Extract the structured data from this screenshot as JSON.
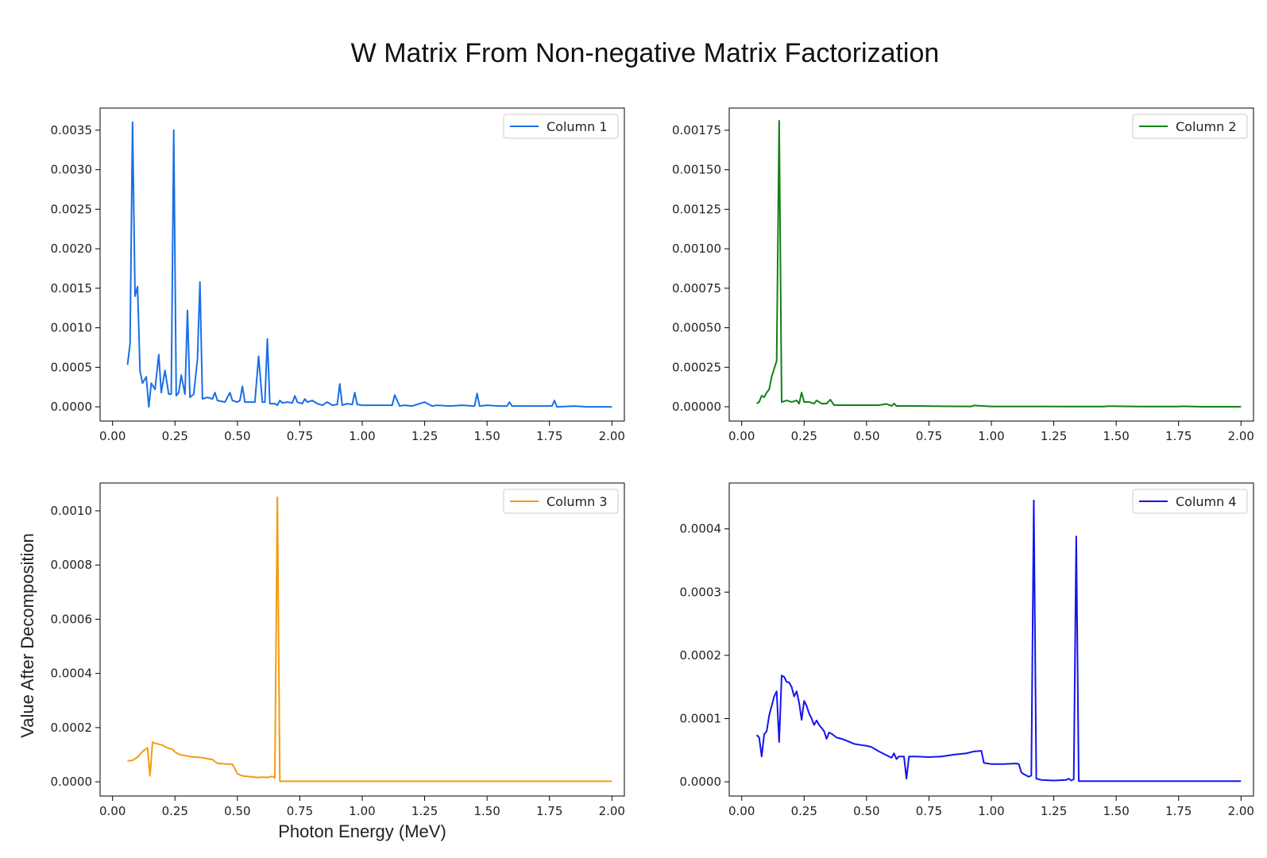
{
  "figure": {
    "title": "W Matrix From Non-negative Matrix Factorization",
    "ylabel": "Value After Decomposition",
    "xlabel": "Photon Energy (MeV)"
  },
  "chart_data": [
    {
      "type": "line",
      "series": [
        {
          "name": "Column 1",
          "color": "#1a6fe6",
          "x": [
            0.06,
            0.07,
            0.08,
            0.09,
            0.1,
            0.11,
            0.12,
            0.135,
            0.145,
            0.155,
            0.17,
            0.185,
            0.195,
            0.21,
            0.225,
            0.235,
            0.245,
            0.255,
            0.265,
            0.275,
            0.29,
            0.3,
            0.31,
            0.325,
            0.34,
            0.35,
            0.36,
            0.38,
            0.4,
            0.41,
            0.42,
            0.45,
            0.47,
            0.48,
            0.5,
            0.51,
            0.52,
            0.53,
            0.55,
            0.57,
            0.585,
            0.6,
            0.61,
            0.62,
            0.63,
            0.65,
            0.66,
            0.67,
            0.68,
            0.7,
            0.72,
            0.73,
            0.74,
            0.76,
            0.77,
            0.78,
            0.8,
            0.82,
            0.84,
            0.86,
            0.88,
            0.9,
            0.91,
            0.92,
            0.94,
            0.96,
            0.97,
            0.98,
            1.0,
            1.05,
            1.1,
            1.12,
            1.13,
            1.15,
            1.17,
            1.2,
            1.25,
            1.28,
            1.3,
            1.35,
            1.4,
            1.45,
            1.46,
            1.47,
            1.5,
            1.55,
            1.58,
            1.59,
            1.6,
            1.65,
            1.7,
            1.76,
            1.77,
            1.78,
            1.85,
            1.9,
            2.0
          ],
          "y": [
            0.00053,
            0.0008,
            0.0036,
            0.0014,
            0.00152,
            0.00045,
            0.0003,
            0.00038,
            0.0,
            0.0003,
            0.00022,
            0.00066,
            0.00018,
            0.00046,
            0.00016,
            0.00016,
            0.0035,
            0.00014,
            0.00018,
            0.0004,
            0.00016,
            0.00122,
            0.00012,
            0.00016,
            0.0006,
            0.00158,
            0.0001,
            0.00012,
            0.0001,
            0.00018,
            8e-05,
            6e-05,
            0.00018,
            8e-05,
            6e-05,
            8e-05,
            0.00026,
            6e-05,
            6e-05,
            6e-05,
            0.00064,
            6e-05,
            6e-05,
            0.00086,
            4e-05,
            4e-05,
            2e-05,
            8e-05,
            5e-05,
            6e-05,
            5e-05,
            0.00014,
            6e-05,
            4e-05,
            0.0001,
            6e-05,
            8e-05,
            4e-05,
            2e-05,
            6e-05,
            2e-05,
            3e-05,
            0.00029,
            2e-05,
            4e-05,
            3e-05,
            0.00018,
            3e-05,
            2e-05,
            2e-05,
            2e-05,
            2e-05,
            0.00015,
            1e-05,
            2e-05,
            1e-05,
            6e-05,
            1e-05,
            2e-05,
            1e-05,
            2e-05,
            1e-05,
            0.00017,
            1e-05,
            2e-05,
            1e-05,
            1e-05,
            6e-05,
            1e-05,
            1e-05,
            1e-05,
            1e-05,
            8e-05,
            0.0,
            1e-05,
            0.0,
            0.0
          ]
        }
      ],
      "legend": "upper right",
      "xlim": [
        -0.05,
        2.05
      ],
      "ylim": [
        -0.00018,
        0.00378
      ],
      "xticks": [
        "0.00",
        "0.25",
        "0.50",
        "0.75",
        "1.00",
        "1.25",
        "1.50",
        "1.75",
        "2.00"
      ],
      "yticks": [
        "0.0000",
        "0.0005",
        "0.0010",
        "0.0015",
        "0.0020",
        "0.0025",
        "0.0030",
        "0.0035"
      ]
    },
    {
      "type": "line",
      "series": [
        {
          "name": "Column 2",
          "color": "#138015",
          "x": [
            0.06,
            0.07,
            0.08,
            0.09,
            0.1,
            0.11,
            0.12,
            0.14,
            0.15,
            0.16,
            0.18,
            0.2,
            0.22,
            0.23,
            0.24,
            0.25,
            0.27,
            0.29,
            0.3,
            0.32,
            0.34,
            0.355,
            0.37,
            0.4,
            0.45,
            0.5,
            0.55,
            0.58,
            0.6,
            0.61,
            0.62,
            0.65,
            0.7,
            0.8,
            0.92,
            0.93,
            1.0,
            1.1,
            1.2,
            1.3,
            1.45,
            1.47,
            1.6,
            1.75,
            1.76,
            1.85,
            2.0
          ],
          "y": [
            2e-05,
            3e-05,
            7e-05,
            6e-05,
            9e-05,
            0.00011,
            0.00019,
            0.00029,
            0.00181,
            3e-05,
            4e-05,
            3e-05,
            4e-05,
            2e-05,
            9e-05,
            3e-05,
            3e-05,
            2e-05,
            4e-05,
            2e-05,
            2e-05,
            4.5e-05,
            1e-05,
            1e-05,
            1e-05,
            1e-05,
            1e-05,
            1.8e-05,
            5e-06,
            2e-05,
            5e-06,
            5e-06,
            5e-06,
            3e-06,
            2e-06,
            8e-06,
            2e-06,
            2e-06,
            2e-06,
            1e-06,
            1e-06,
            4e-06,
            1e-06,
            1e-06,
            3e-06,
            0.0,
            0.0
          ]
        }
      ],
      "legend": "upper right",
      "xlim": [
        -0.05,
        2.05
      ],
      "ylim": [
        -9.05e-05,
        0.0018905
      ],
      "xticks": [
        "0.00",
        "0.25",
        "0.50",
        "0.75",
        "1.00",
        "1.25",
        "1.50",
        "1.75",
        "2.00"
      ],
      "yticks": [
        "0.00000",
        "0.00025",
        "0.00050",
        "0.00075",
        "0.00100",
        "0.00125",
        "0.00150",
        "0.00175"
      ]
    },
    {
      "type": "line",
      "series": [
        {
          "name": "Column 3",
          "color": "#f59a11",
          "x": [
            0.06,
            0.08,
            0.1,
            0.12,
            0.14,
            0.15,
            0.16,
            0.18,
            0.2,
            0.22,
            0.24,
            0.25,
            0.27,
            0.3,
            0.32,
            0.35,
            0.37,
            0.4,
            0.42,
            0.45,
            0.48,
            0.5,
            0.52,
            0.55,
            0.58,
            0.6,
            0.62,
            0.64,
            0.65,
            0.66,
            0.67,
            0.68,
            0.75,
            1.0,
            1.25,
            1.5,
            1.75,
            2.0
          ],
          "y": [
            7.7e-05,
            7.9e-05,
            9.1e-05,
            0.000112,
            0.000125,
            2.2e-05,
            0.000146,
            0.00014,
            0.000135,
            0.000125,
            0.00012,
            0.00011,
            0.0001,
            9.5e-05,
            9.2e-05,
            9e-05,
            8.7e-05,
            8.2e-05,
            6.8e-05,
            6.6e-05,
            6.5e-05,
            3e-05,
            2.2e-05,
            1.9e-05,
            1.6e-05,
            1.7e-05,
            1.6e-05,
            2e-05,
            1.4e-05,
            0.00105,
            2e-06,
            2e-06,
            2e-06,
            2e-06,
            2e-06,
            2e-06,
            2e-06,
            2e-06
          ]
        }
      ],
      "legend": "upper right",
      "xlim": [
        -0.05,
        2.05
      ],
      "ylim": [
        -5.25e-05,
        0.0011025
      ],
      "xticks": [
        "0.00",
        "0.25",
        "0.50",
        "0.75",
        "1.00",
        "1.25",
        "1.50",
        "1.75",
        "2.00"
      ],
      "yticks": [
        "0.0000",
        "0.0002",
        "0.0004",
        "0.0006",
        "0.0008",
        "0.0010"
      ]
    },
    {
      "type": "line",
      "series": [
        {
          "name": "Column 4",
          "color": "#1414ee",
          "x": [
            0.06,
            0.07,
            0.08,
            0.09,
            0.1,
            0.11,
            0.12,
            0.13,
            0.14,
            0.15,
            0.16,
            0.17,
            0.18,
            0.19,
            0.2,
            0.21,
            0.22,
            0.23,
            0.24,
            0.25,
            0.26,
            0.27,
            0.28,
            0.29,
            0.3,
            0.31,
            0.32,
            0.33,
            0.34,
            0.35,
            0.36,
            0.38,
            0.4,
            0.42,
            0.45,
            0.48,
            0.5,
            0.52,
            0.55,
            0.58,
            0.6,
            0.61,
            0.62,
            0.63,
            0.65,
            0.66,
            0.67,
            0.7,
            0.75,
            0.8,
            0.85,
            0.9,
            0.93,
            0.96,
            0.97,
            1.0,
            1.05,
            1.1,
            1.11,
            1.12,
            1.13,
            1.14,
            1.15,
            1.16,
            1.17,
            1.18,
            1.2,
            1.25,
            1.3,
            1.31,
            1.32,
            1.33,
            1.34,
            1.35,
            1.4,
            1.5,
            1.75,
            2.0
          ],
          "y": [
            7.4e-05,
            7e-05,
            4e-05,
            7.5e-05,
            8e-05,
            0.000105,
            0.00012,
            0.000135,
            0.000143,
            6.3e-05,
            0.000168,
            0.000166,
            0.000158,
            0.000157,
            0.00015,
            0.000135,
            0.000143,
            0.000125,
            9.8e-05,
            0.000128,
            0.00012,
            0.000108,
            0.0001,
            9e-05,
            9.7e-05,
            9e-05,
            8.5e-05,
            8e-05,
            6.8e-05,
            7.8e-05,
            7.6e-05,
            7e-05,
            6.8e-05,
            6.5e-05,
            6e-05,
            5.8e-05,
            5.7e-05,
            5.5e-05,
            4.8e-05,
            4.2e-05,
            3.8e-05,
            4.5e-05,
            3.6e-05,
            4e-05,
            4e-05,
            5e-06,
            4e-05,
            4e-05,
            3.9e-05,
            4e-05,
            4.3e-05,
            4.5e-05,
            4.8e-05,
            4.9e-05,
            3e-05,
            2.8e-05,
            2.8e-05,
            2.9e-05,
            2.8e-05,
            1.5e-05,
            1.2e-05,
            1e-05,
            8e-06,
            1e-05,
            0.000445,
            5e-06,
            3e-06,
            2e-06,
            3e-06,
            5e-06,
            2e-06,
            4e-06,
            0.000388,
            1e-06,
            1e-06,
            1e-06,
            1e-06,
            1e-06
          ]
        }
      ],
      "legend": "upper right",
      "xlim": [
        -0.05,
        2.05
      ],
      "ylim": [
        -2.25e-05,
        0.0004725
      ],
      "xticks": [
        "0.00",
        "0.25",
        "0.50",
        "0.75",
        "1.00",
        "1.25",
        "1.50",
        "1.75",
        "2.00"
      ],
      "yticks": [
        "0.0000",
        "0.0001",
        "0.0002",
        "0.0003",
        "0.0004"
      ]
    }
  ]
}
